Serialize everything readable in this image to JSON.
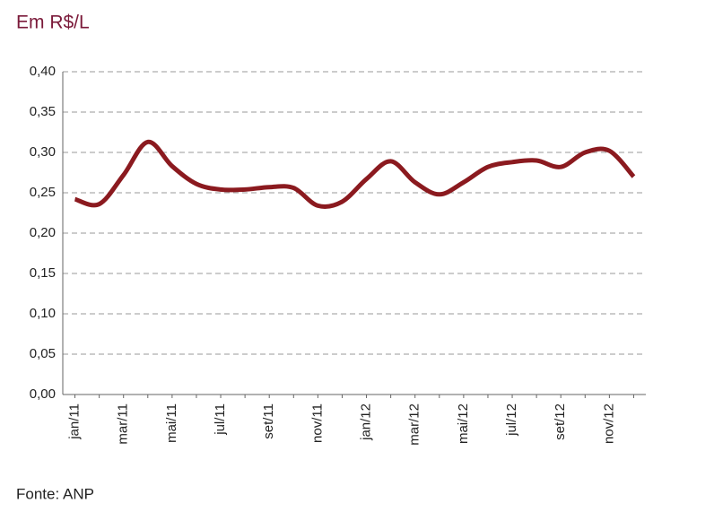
{
  "chart_data": {
    "type": "line",
    "title": "Em R$/L",
    "source": "Fonte: ANP",
    "categories": [
      "jan/11",
      null,
      "mar/11",
      null,
      "mai/11",
      null,
      "jul/11",
      null,
      "set/11",
      null,
      "nov/11",
      null,
      "jan/12",
      null,
      "mar/12",
      null,
      "mai/12",
      null,
      "jul/12",
      null,
      "set/12",
      null,
      "nov/12",
      null
    ],
    "series": [
      {
        "name": "R$/L",
        "color": "#8b1a1f",
        "values": [
          0.242,
          0.236,
          0.272,
          0.313,
          0.283,
          0.261,
          0.254,
          0.254,
          0.257,
          0.256,
          0.234,
          0.239,
          0.267,
          0.289,
          0.263,
          0.248,
          0.263,
          0.282,
          0.288,
          0.29,
          0.282,
          0.3,
          0.302,
          0.27
        ]
      }
    ],
    "ylim": [
      0,
      0.4
    ],
    "yticks": [
      {
        "value": 0,
        "label": "0,00"
      },
      {
        "value": 0.05,
        "label": "0,05"
      },
      {
        "value": 0.1,
        "label": "0,10"
      },
      {
        "value": 0.15,
        "label": "0,15"
      },
      {
        "value": 0.2,
        "label": "0,20"
      },
      {
        "value": 0.25,
        "label": "0,25"
      },
      {
        "value": 0.3,
        "label": "0,30"
      },
      {
        "value": 0.35,
        "label": "0,35"
      },
      {
        "value": 0.4,
        "label": "0,40"
      }
    ],
    "grid": true
  }
}
